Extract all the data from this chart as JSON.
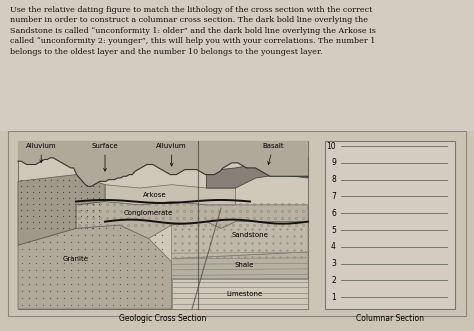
{
  "title_text": "Use the relative dating figure to match the lithology of the cross section with the correct\nnumber in order to construct a columnar cross section. The dark bold line overlying the\nSandstone is called “unconformity 1: older” and the dark bold line overlying the Arkose is\ncalled “unconformity 2: younger”, this will help you with your correlations. The number 1\nbelongs to the oldest layer and the number 10 belongs to the youngest layer.",
  "page_bg": "#ccc4b4",
  "inner_bg": "#d8d0c0",
  "cs_bg": "#c8c0b0",
  "col_bg": "#d4ccc0",
  "cross_section_label": "Geologic Cross Section",
  "columnar_label": "Columnar Section",
  "numbers": [
    10,
    9,
    8,
    7,
    6,
    5,
    4,
    3,
    2,
    1
  ],
  "granite_color": "#b0a898",
  "alluvium_color": "#a09888",
  "arkose_color": "#c8c0b0",
  "cong_color": "#b8b0a0",
  "sandstone_color": "#c0b8a8",
  "shale_color": "#b8b0a0",
  "limestone_color": "#d0c8b8",
  "basalt_color": "#888078",
  "surface_color": "#b0a898",
  "top_alluvium_color": "#989080"
}
